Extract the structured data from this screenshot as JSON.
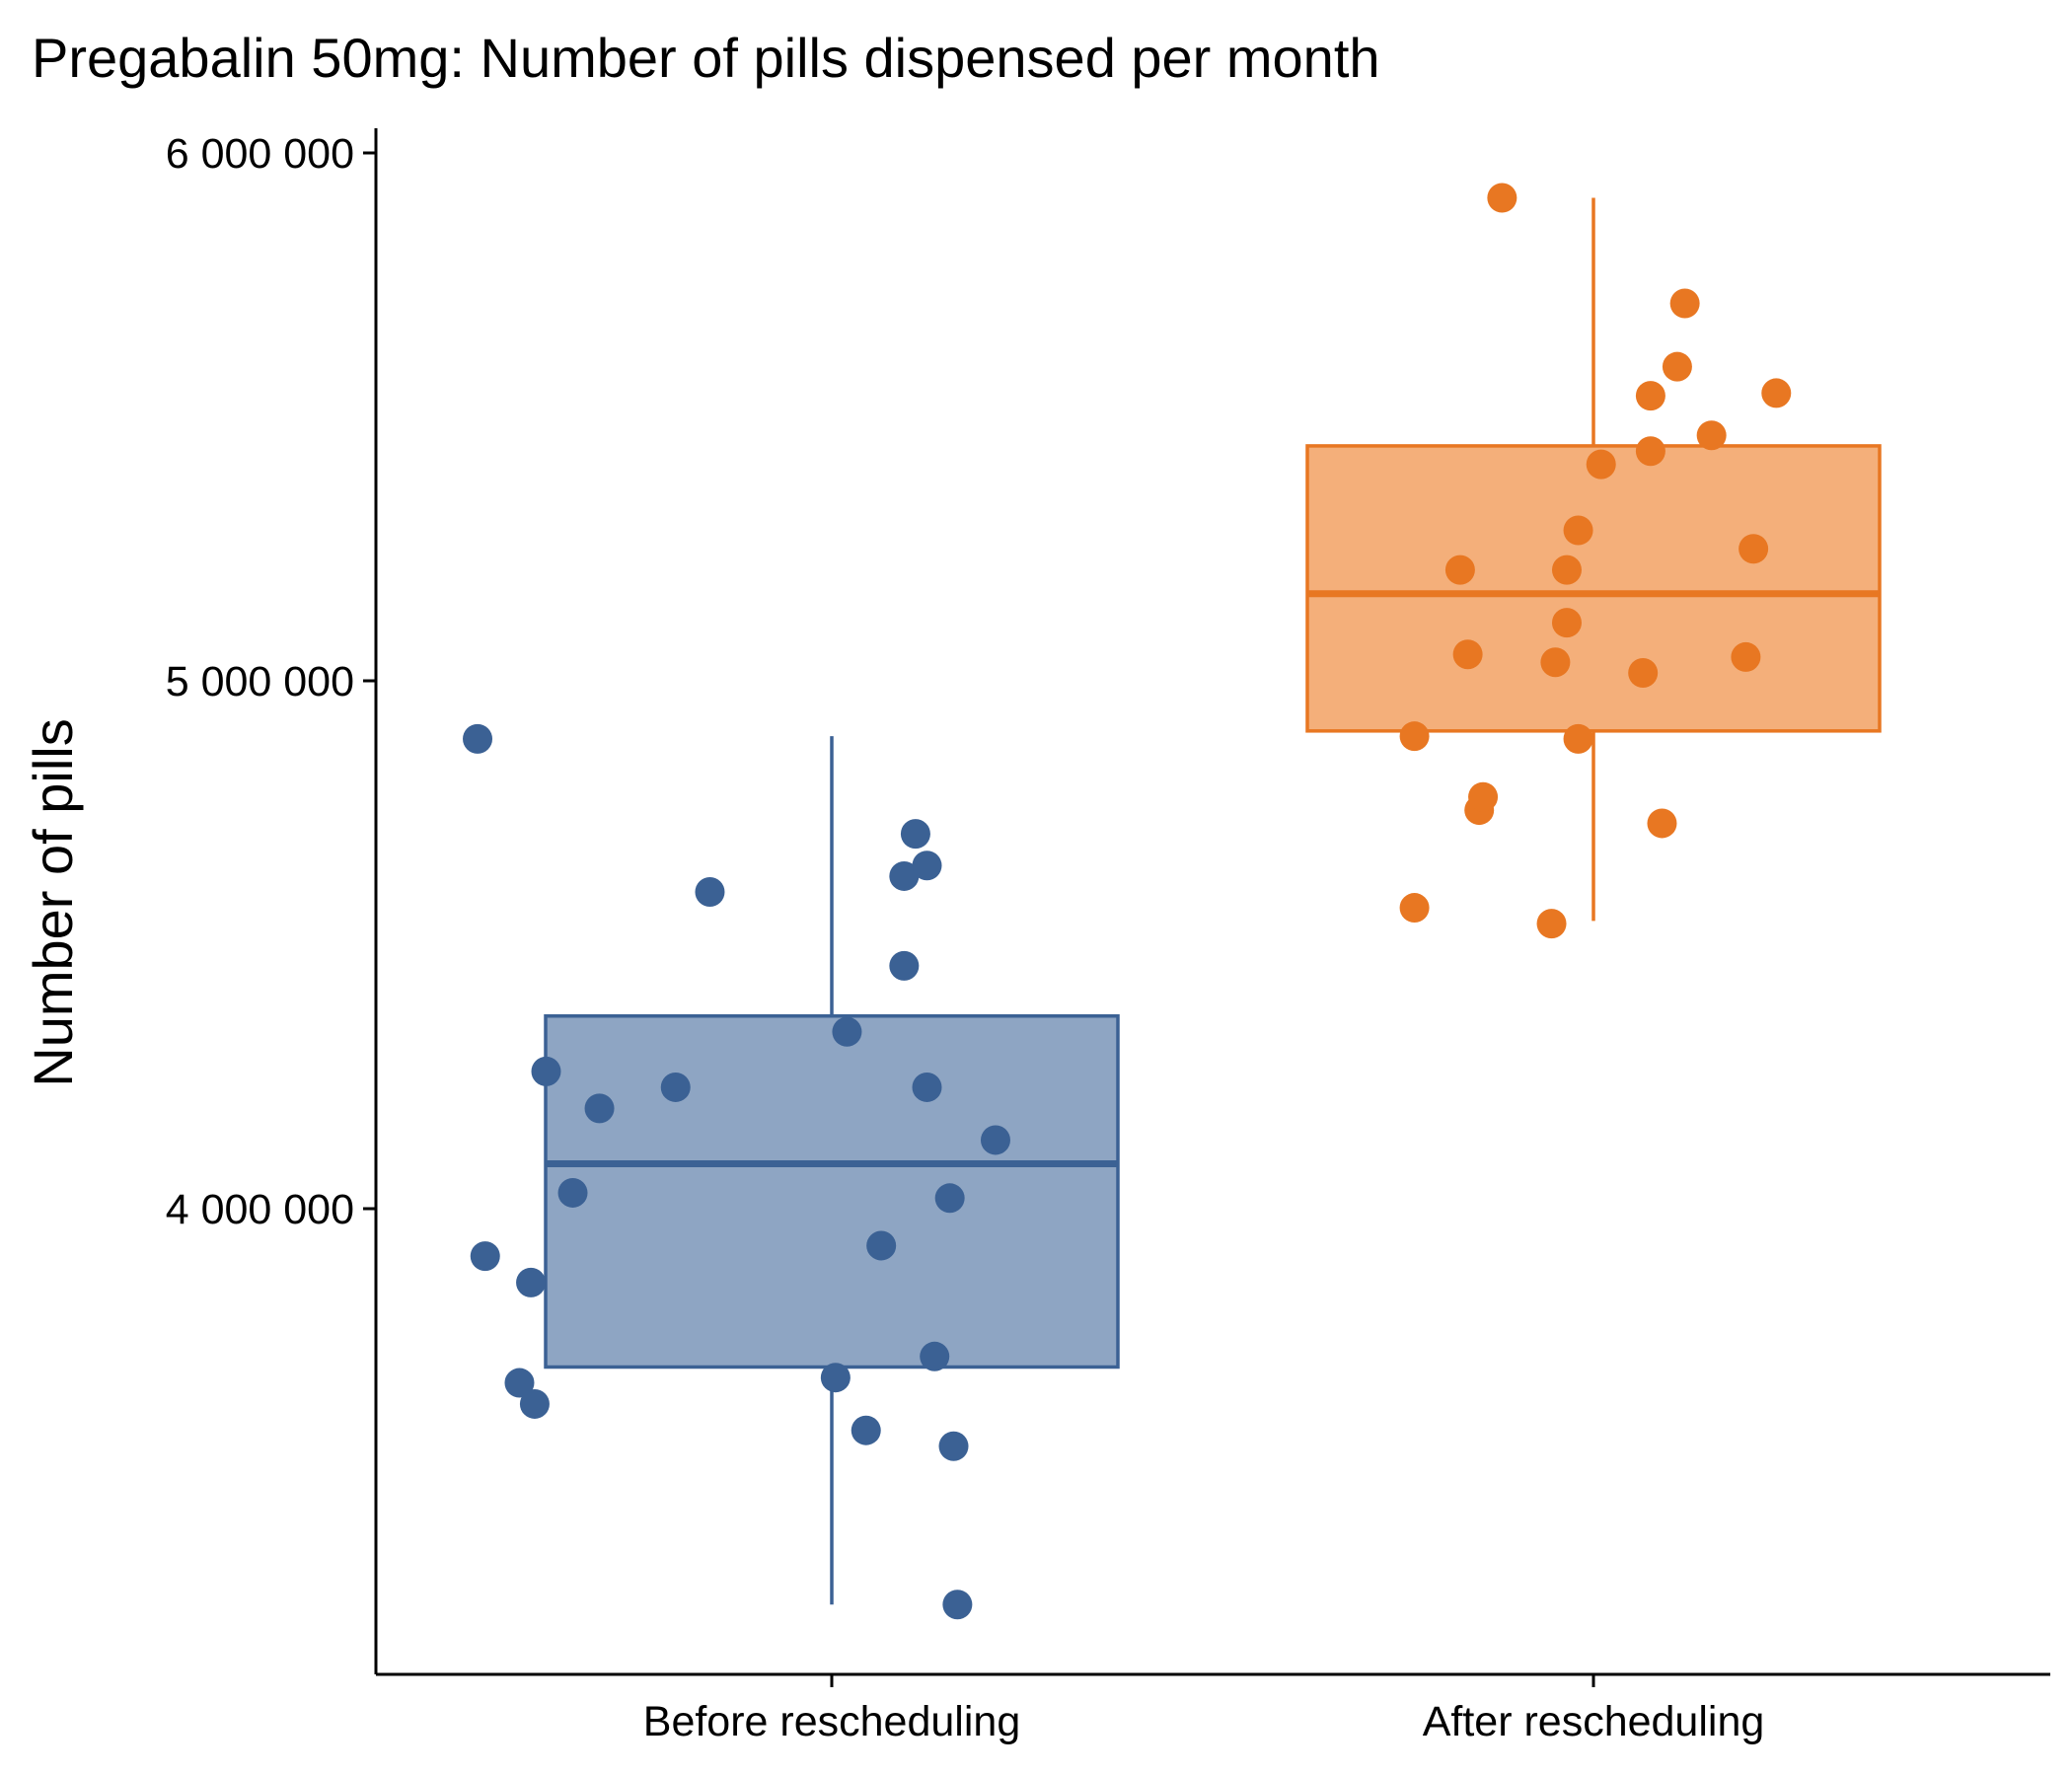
{
  "chart_data": {
    "type": "boxplot_jitter",
    "title": "Pregabalin 50mg: Number of pills dispensed per month",
    "xlabel": "",
    "ylabel": "Number of pills",
    "ylim": [
      3150000,
      6050000
    ],
    "yticks": [
      4000000,
      5000000,
      6000000
    ],
    "ytick_labels": [
      "4 000 000",
      "5 000 000",
      "6 000 000"
    ],
    "categories": [
      "Before rescheduling",
      "After rescheduling"
    ],
    "grid": false,
    "legend": "none",
    "series": [
      {
        "category": "Before rescheduling",
        "color": "#3B6194",
        "fill": "#8EA5C3",
        "box": {
          "whisker_low": 3250000,
          "q1": 3700000,
          "median": 4085000,
          "q3": 4365000,
          "whisker_high": 4895000
        },
        "points": [
          [
            -0.93,
            4890000
          ],
          [
            -0.91,
            3910000
          ],
          [
            -0.82,
            3670000
          ],
          [
            -0.79,
            3860000
          ],
          [
            -0.78,
            3630000
          ],
          [
            -0.75,
            4260000
          ],
          [
            -0.68,
            4030000
          ],
          [
            -0.61,
            4190000
          ],
          [
            -0.41,
            4230000
          ],
          [
            -0.32,
            4600000
          ],
          [
            0.01,
            3680000
          ],
          [
            0.04,
            4335000
          ],
          [
            0.13,
            3930000
          ],
          [
            0.09,
            3580000
          ],
          [
            0.19,
            4460000
          ],
          [
            0.19,
            4630000
          ],
          [
            0.22,
            4710000
          ],
          [
            0.25,
            4650000
          ],
          [
            0.25,
            4230000
          ],
          [
            0.27,
            3720000
          ],
          [
            0.31,
            4020000
          ],
          [
            0.32,
            3550000
          ],
          [
            0.33,
            3250000
          ],
          [
            0.43,
            4130000
          ]
        ]
      },
      {
        "category": "After rescheduling",
        "color": "#E87722",
        "fill": "#F4AF7A",
        "box": {
          "whisker_low": 4545000,
          "q1": 4905000,
          "median": 5165000,
          "q3": 5445000,
          "whisker_high": 5915000
        },
        "points": [
          [
            -0.47,
            4570000
          ],
          [
            -0.47,
            4895000
          ],
          [
            -0.35,
            5210000
          ],
          [
            -0.33,
            5050000
          ],
          [
            -0.3,
            4755000
          ],
          [
            -0.29,
            4780000
          ],
          [
            -0.24,
            5915000
          ],
          [
            -0.11,
            4540000
          ],
          [
            -0.1,
            5035000
          ],
          [
            -0.07,
            5210000
          ],
          [
            -0.07,
            5110000
          ],
          [
            -0.04,
            5285000
          ],
          [
            -0.04,
            4890000
          ],
          [
            0.02,
            5410000
          ],
          [
            0.13,
            5015000
          ],
          [
            0.15,
            5435000
          ],
          [
            0.15,
            5540000
          ],
          [
            0.18,
            4730000
          ],
          [
            0.22,
            5595000
          ],
          [
            0.24,
            5715000
          ],
          [
            0.31,
            5465000
          ],
          [
            0.4,
            5045000
          ],
          [
            0.42,
            5250000
          ],
          [
            0.48,
            5545000
          ]
        ]
      }
    ]
  }
}
